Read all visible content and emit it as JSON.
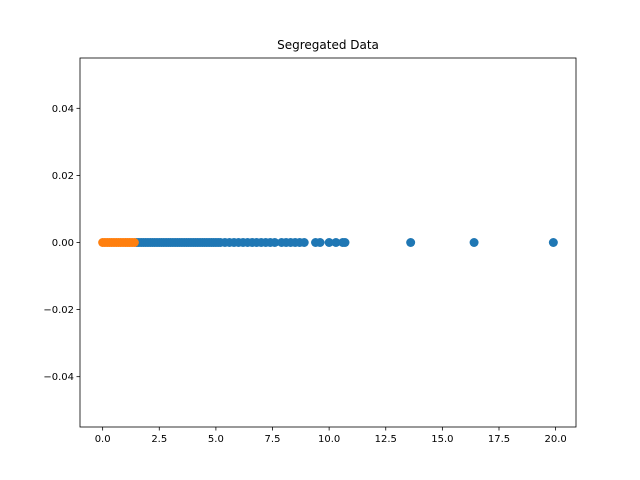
{
  "chart_data": {
    "type": "scatter",
    "title": "Segregated Data",
    "xlabel": "",
    "ylabel": "",
    "xlim": [
      -1.0,
      20.9
    ],
    "ylim": [
      -0.055,
      0.055
    ],
    "x_ticks": [
      0.0,
      2.5,
      5.0,
      7.5,
      10.0,
      12.5,
      15.0,
      17.5,
      20.0
    ],
    "x_tick_labels": [
      "0.0",
      "2.5",
      "5.0",
      "7.5",
      "10.0",
      "12.5",
      "15.0",
      "17.5",
      "20.0"
    ],
    "y_ticks": [
      -0.04,
      -0.02,
      0.0,
      0.02,
      0.04
    ],
    "y_tick_labels": [
      "−0.04",
      "−0.02",
      "0.00",
      "0.02",
      "0.04"
    ],
    "grid": false,
    "legend": "none",
    "series": [
      {
        "color": "#1f77b4",
        "points": [
          [
            1.5,
            0
          ],
          [
            1.6,
            0
          ],
          [
            1.7,
            0
          ],
          [
            1.8,
            0
          ],
          [
            1.9,
            0
          ],
          [
            2.0,
            0
          ],
          [
            2.1,
            0
          ],
          [
            2.2,
            0
          ],
          [
            2.3,
            0
          ],
          [
            2.4,
            0
          ],
          [
            2.5,
            0
          ],
          [
            2.6,
            0
          ],
          [
            2.7,
            0
          ],
          [
            2.8,
            0
          ],
          [
            2.9,
            0
          ],
          [
            3.0,
            0
          ],
          [
            3.1,
            0
          ],
          [
            3.2,
            0
          ],
          [
            3.3,
            0
          ],
          [
            3.4,
            0
          ],
          [
            3.5,
            0
          ],
          [
            3.6,
            0
          ],
          [
            3.7,
            0
          ],
          [
            3.8,
            0
          ],
          [
            3.9,
            0
          ],
          [
            4.0,
            0
          ],
          [
            4.1,
            0
          ],
          [
            4.2,
            0
          ],
          [
            4.3,
            0
          ],
          [
            4.4,
            0
          ],
          [
            4.5,
            0
          ],
          [
            4.6,
            0
          ],
          [
            4.7,
            0
          ],
          [
            4.8,
            0
          ],
          [
            4.9,
            0
          ],
          [
            5.0,
            0
          ],
          [
            5.1,
            0
          ],
          [
            5.2,
            0
          ],
          [
            5.4,
            0
          ],
          [
            5.6,
            0
          ],
          [
            5.8,
            0
          ],
          [
            6.0,
            0
          ],
          [
            6.2,
            0
          ],
          [
            6.4,
            0
          ],
          [
            6.6,
            0
          ],
          [
            6.8,
            0
          ],
          [
            7.0,
            0
          ],
          [
            7.2,
            0
          ],
          [
            7.4,
            0
          ],
          [
            7.6,
            0
          ],
          [
            7.9,
            0
          ],
          [
            8.1,
            0
          ],
          [
            8.3,
            0
          ],
          [
            8.5,
            0
          ],
          [
            8.7,
            0
          ],
          [
            8.9,
            0
          ],
          [
            9.4,
            0
          ],
          [
            9.6,
            0
          ],
          [
            10.0,
            0
          ],
          [
            10.3,
            0
          ],
          [
            10.6,
            0
          ],
          [
            10.7,
            0
          ],
          [
            13.6,
            0
          ],
          [
            16.4,
            0
          ],
          [
            19.9,
            0
          ]
        ]
      },
      {
        "color": "#ff7f0e",
        "points": [
          [
            0.0,
            0
          ],
          [
            0.1,
            0
          ],
          [
            0.2,
            0
          ],
          [
            0.3,
            0
          ],
          [
            0.4,
            0
          ],
          [
            0.5,
            0
          ],
          [
            0.6,
            0
          ],
          [
            0.7,
            0
          ],
          [
            0.8,
            0
          ],
          [
            0.9,
            0
          ],
          [
            1.0,
            0
          ],
          [
            1.1,
            0
          ],
          [
            1.2,
            0
          ],
          [
            1.3,
            0
          ],
          [
            1.4,
            0
          ]
        ]
      }
    ]
  }
}
